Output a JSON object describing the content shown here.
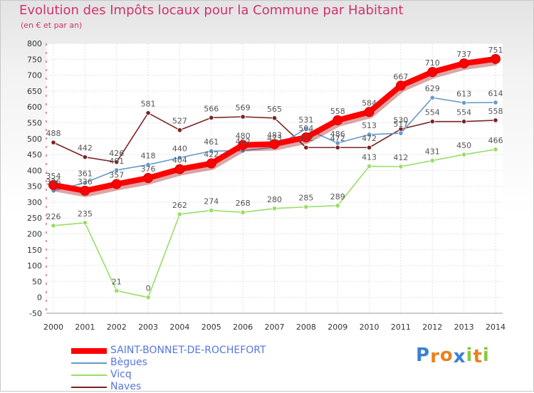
{
  "header": {
    "title": "Evolution des Impôts locaux pour la Commune par Habitant",
    "subtitle": "(en € et par an)"
  },
  "brand": {
    "letters": [
      "P",
      "r",
      "o",
      "x",
      "i",
      "t",
      "i"
    ],
    "colors": [
      "#3a7fd5",
      "#e8831f",
      "#e8831f",
      "#3a7fd5",
      "#8dc63f",
      "#e8831f",
      "#8dc63f"
    ]
  },
  "chart_data": {
    "type": "line",
    "title": "Evolution des Impôts locaux pour la Commune par Habitant",
    "subtitle": "(en € et par an)",
    "xlabel": "",
    "ylabel": "",
    "x": [
      "2000",
      "2001",
      "2002",
      "2003",
      "2004",
      "2005",
      "2006",
      "2007",
      "2008",
      "2009",
      "2010",
      "2011",
      "2012",
      "2013",
      "2014"
    ],
    "ylim": [
      -50,
      800
    ],
    "yticks": [
      -50,
      0,
      50,
      100,
      150,
      200,
      250,
      300,
      350,
      400,
      450,
      500,
      550,
      600,
      650,
      700,
      750,
      800
    ],
    "ytick_labels": [
      "-50",
      "0",
      "50",
      "100",
      "150",
      "200",
      "250",
      "300",
      "350",
      "400",
      "450",
      "500",
      "550",
      "600",
      "650",
      "700",
      "750",
      "800"
    ],
    "grid": true,
    "legend": "bottom-left",
    "series": [
      {
        "name": "SAINT-BONNET-DE-ROCHEFORT",
        "color": "#ff0000",
        "values": [
          354,
          336,
          357,
          376,
          404,
          422,
          480,
          483,
          504,
          558,
          584,
          667,
          710,
          737,
          751
        ],
        "labels": [
          "354",
          "336",
          "357",
          "376",
          "404",
          "422",
          "480",
          "483",
          "504",
          "558",
          "584",
          "667",
          "710",
          "737",
          "751"
        ]
      },
      {
        "name": "Bègues",
        "color": "#6699cc",
        "values": [
          336,
          361,
          401,
          418,
          440,
          461,
          462,
          473,
          531,
          486,
          513,
          517,
          629,
          613,
          614
        ],
        "labels": [
          "336",
          "361",
          "401",
          "418",
          "440",
          "461",
          "462",
          "473",
          "531",
          "486",
          "513",
          "517",
          "629",
          "613",
          "614"
        ]
      },
      {
        "name": "Vicq",
        "color": "#99dd66",
        "values": [
          226,
          235,
          21,
          0,
          262,
          274,
          268,
          280,
          285,
          289,
          413,
          412,
          431,
          450,
          466
        ],
        "labels": [
          "226",
          "235",
          "21",
          "0",
          "262",
          "274",
          "268",
          "280",
          "285",
          "289",
          "413",
          "412",
          "431",
          "450",
          "466"
        ]
      },
      {
        "name": "Naves",
        "color": "#7a2424",
        "values": [
          488,
          442,
          426,
          581,
          527,
          566,
          569,
          565,
          472,
          472,
          472,
          530,
          554,
          554,
          558
        ],
        "labels": [
          "488",
          "442",
          "426",
          "581",
          "527",
          "566",
          "569",
          "565",
          "472",
          "472",
          "472",
          "530",
          "554",
          "554",
          "558"
        ]
      }
    ]
  }
}
